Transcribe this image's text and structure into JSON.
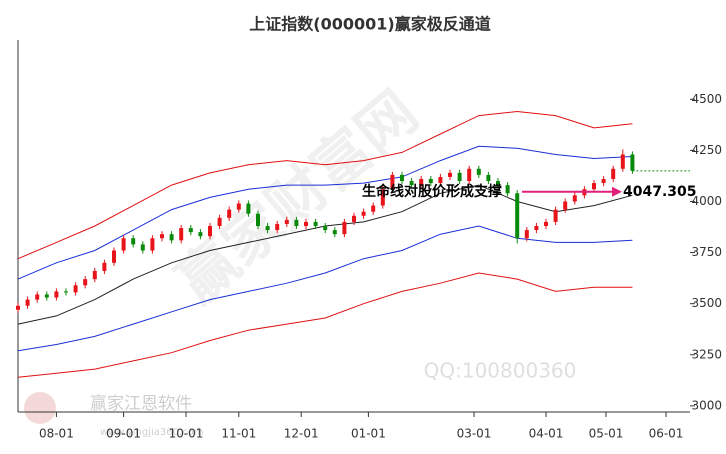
{
  "chart_data": {
    "type": "candlestick",
    "title": "上证指数(000001)赢家极反通道",
    "xlim": [
      0,
      140
    ],
    "xticks": [
      {
        "value": 8,
        "label": "08-01"
      },
      {
        "value": 22,
        "label": "09-01"
      },
      {
        "value": 35,
        "label": "10-01"
      },
      {
        "value": 46,
        "label": "11-01"
      },
      {
        "value": 59,
        "label": "12-01"
      },
      {
        "value": 73,
        "label": "01-01"
      },
      {
        "value": 95,
        "label": "03-01"
      },
      {
        "value": 110,
        "label": "04-01"
      },
      {
        "value": 122.5,
        "label": "05-01"
      },
      {
        "value": 135,
        "label": "06-01"
      }
    ],
    "ylim": [
      2970,
      4790
    ],
    "yticks": [
      3000,
      3250,
      3500,
      3750,
      4000,
      4250,
      4500
    ],
    "up_color": "#e8141a",
    "down_color": "#0a8a0a",
    "x": [
      0,
      2,
      4,
      6,
      8,
      10,
      12,
      14,
      16,
      18,
      20,
      22,
      24,
      26,
      28,
      30,
      32,
      34,
      36,
      38,
      40,
      42,
      44,
      46,
      48,
      50,
      52,
      54,
      56,
      58,
      60,
      62,
      64,
      66,
      68,
      70,
      72,
      74,
      76,
      78,
      80,
      82,
      84,
      86,
      88,
      90,
      92,
      94,
      96,
      98,
      100,
      102,
      104,
      106,
      108,
      110,
      112,
      114,
      116,
      118,
      120,
      122,
      124,
      126,
      128
    ],
    "candles": [
      [
        3470,
        3505,
        3455,
        3490
      ],
      [
        3490,
        3535,
        3475,
        3520
      ],
      [
        3520,
        3560,
        3505,
        3545
      ],
      [
        3545,
        3560,
        3515,
        3530
      ],
      [
        3530,
        3575,
        3515,
        3560
      ],
      [
        3560,
        3575,
        3540,
        3555
      ],
      [
        3555,
        3605,
        3540,
        3590
      ],
      [
        3590,
        3635,
        3575,
        3620
      ],
      [
        3620,
        3675,
        3605,
        3660
      ],
      [
        3660,
        3715,
        3645,
        3700
      ],
      [
        3700,
        3775,
        3685,
        3760
      ],
      [
        3760,
        3835,
        3745,
        3820
      ],
      [
        3820,
        3835,
        3775,
        3790
      ],
      [
        3790,
        3805,
        3745,
        3760
      ],
      [
        3760,
        3835,
        3745,
        3820
      ],
      [
        3820,
        3855,
        3805,
        3840
      ],
      [
        3840,
        3855,
        3795,
        3810
      ],
      [
        3810,
        3885,
        3795,
        3870
      ],
      [
        3870,
        3885,
        3835,
        3850
      ],
      [
        3850,
        3865,
        3815,
        3830
      ],
      [
        3830,
        3895,
        3815,
        3880
      ],
      [
        3880,
        3935,
        3865,
        3920
      ],
      [
        3920,
        3975,
        3905,
        3960
      ],
      [
        3960,
        4005,
        3945,
        3990
      ],
      [
        3990,
        4005,
        3925,
        3940
      ],
      [
        3940,
        3955,
        3865,
        3880
      ],
      [
        3880,
        3895,
        3845,
        3860
      ],
      [
        3860,
        3905,
        3845,
        3890
      ],
      [
        3890,
        3925,
        3875,
        3910
      ],
      [
        3910,
        3925,
        3865,
        3880
      ],
      [
        3880,
        3915,
        3865,
        3900
      ],
      [
        3900,
        3915,
        3865,
        3880
      ],
      [
        3880,
        3895,
        3845,
        3860
      ],
      [
        3860,
        3875,
        3825,
        3840
      ],
      [
        3840,
        3915,
        3825,
        3900
      ],
      [
        3900,
        3945,
        3885,
        3930
      ],
      [
        3930,
        3965,
        3915,
        3950
      ],
      [
        3950,
        3995,
        3935,
        3980
      ],
      [
        3980,
        4075,
        3965,
        4060
      ],
      [
        4060,
        4145,
        4045,
        4130
      ],
      [
        4130,
        4145,
        4085,
        4100
      ],
      [
        4100,
        4115,
        4065,
        4080
      ],
      [
        4080,
        4125,
        4065,
        4110
      ],
      [
        4110,
        4125,
        4075,
        4090
      ],
      [
        4090,
        4135,
        4075,
        4120
      ],
      [
        4120,
        4155,
        4105,
        4140
      ],
      [
        4140,
        4155,
        4085,
        4100
      ],
      [
        4100,
        4175,
        4085,
        4160
      ],
      [
        4160,
        4175,
        4115,
        4130
      ],
      [
        4130,
        4145,
        4085,
        4100
      ],
      [
        4100,
        4115,
        4065,
        4080
      ],
      [
        4080,
        4095,
        4025,
        4040
      ],
      [
        4040,
        4055,
        3795,
        3820
      ],
      [
        3820,
        3875,
        3805,
        3860
      ],
      [
        3860,
        3895,
        3845,
        3880
      ],
      [
        3880,
        3915,
        3865,
        3900
      ],
      [
        3900,
        3975,
        3885,
        3960
      ],
      [
        3960,
        4015,
        3945,
        4000
      ],
      [
        4000,
        4045,
        3985,
        4030
      ],
      [
        4030,
        4075,
        4015,
        4060
      ],
      [
        4060,
        4105,
        4045,
        4090
      ],
      [
        4090,
        4125,
        4075,
        4110
      ],
      [
        4110,
        4175,
        4095,
        4160
      ],
      [
        4160,
        4255,
        4145,
        4230
      ],
      [
        4230,
        4245,
        4135,
        4150
      ]
    ],
    "band_x": [
      0,
      8,
      16,
      24,
      32,
      40,
      48,
      56,
      64,
      72,
      80,
      88,
      96,
      104,
      112,
      120,
      128
    ],
    "bands": [
      {
        "color": "#e01010",
        "values": [
          3720,
          3800,
          3880,
          3980,
          4080,
          4140,
          4180,
          4200,
          4180,
          4200,
          4240,
          4330,
          4420,
          4440,
          4420,
          4360,
          4380
        ]
      },
      {
        "color": "#1a2fd6",
        "values": [
          3620,
          3700,
          3760,
          3860,
          3960,
          4020,
          4060,
          4080,
          4080,
          4090,
          4120,
          4200,
          4270,
          4260,
          4230,
          4210,
          4220
        ]
      },
      {
        "color": "#222222",
        "values": [
          3400,
          3440,
          3520,
          3620,
          3700,
          3760,
          3800,
          3840,
          3880,
          3900,
          3950,
          4040,
          4080,
          4000,
          3950,
          3980,
          4030
        ]
      },
      {
        "color": "#1a2fd6",
        "values": [
          3270,
          3300,
          3340,
          3400,
          3460,
          3520,
          3560,
          3600,
          3650,
          3720,
          3760,
          3840,
          3880,
          3820,
          3800,
          3800,
          3810
        ]
      },
      {
        "color": "#e01010",
        "values": [
          3140,
          3160,
          3180,
          3220,
          3260,
          3320,
          3370,
          3400,
          3430,
          3500,
          3560,
          3600,
          3650,
          3620,
          3560,
          3580,
          3580
        ]
      }
    ],
    "annotation": {
      "text": "生命线对股价形成支撑",
      "value": 4047.305,
      "color": "#e0207a"
    },
    "watermarks": [
      "赢家财富网",
      "QQ:100800360",
      "赢家江恩软件",
      "www.yingjia360.com"
    ]
  }
}
